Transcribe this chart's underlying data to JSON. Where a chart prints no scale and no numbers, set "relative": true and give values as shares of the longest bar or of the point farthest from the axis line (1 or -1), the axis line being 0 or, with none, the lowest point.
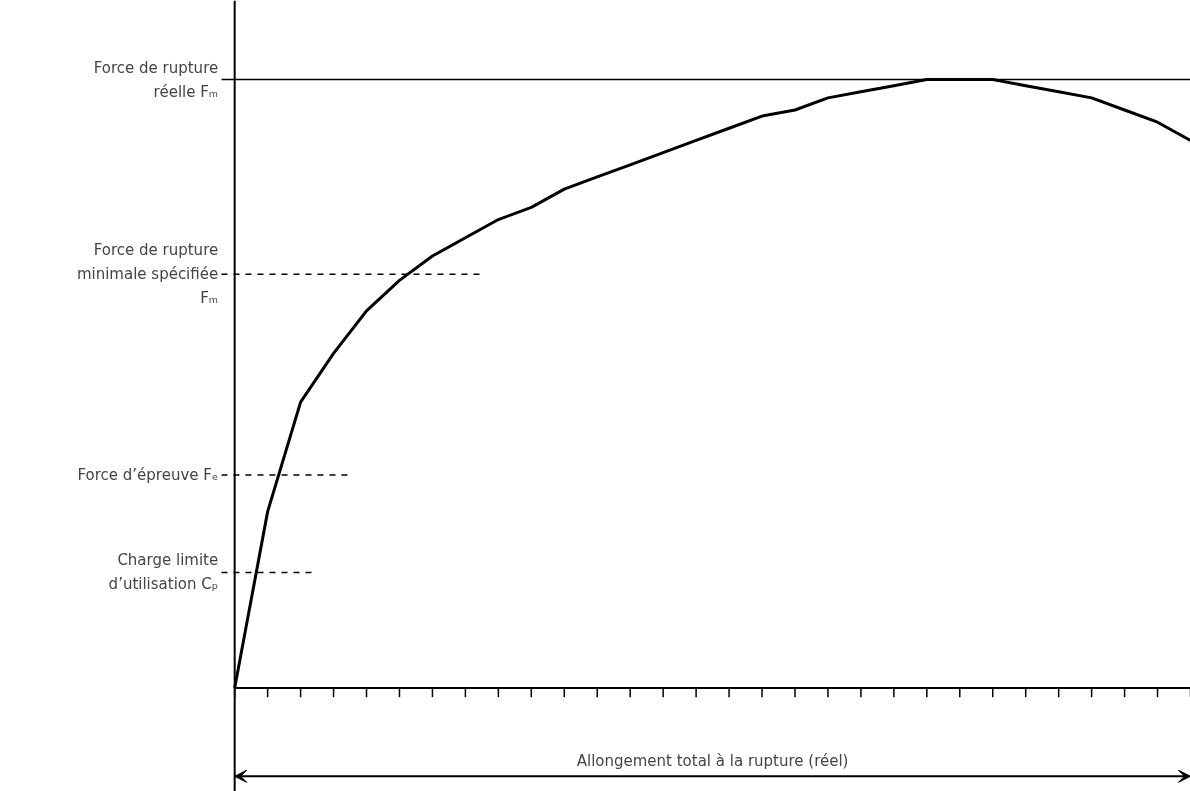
{
  "chart_data": {
    "type": "line",
    "relative": true,
    "color": "#000000",
    "line_style": "solid",
    "categories": [
      null,
      null,
      null,
      null,
      null,
      null,
      null,
      null,
      null,
      null,
      null,
      null,
      null,
      null,
      null,
      null,
      null,
      null,
      null,
      null,
      null,
      null,
      null,
      null,
      null,
      null,
      null,
      null,
      null,
      null
    ],
    "values": [
      0,
      0.29,
      0.47,
      0.55,
      0.62,
      0.67,
      0.71,
      0.74,
      0.77,
      0.79,
      0.82,
      0.84,
      0.86,
      0.88,
      0.9,
      0.92,
      0.94,
      0.95,
      0.97,
      0.98,
      0.99,
      1.0,
      1.0,
      1.0,
      0.99,
      0.98,
      0.97,
      0.95,
      0.93,
      0.9
    ],
    "xlabel": "Allongement total à la rupture (réel)",
    "ref_lines": [
      {
        "axis": "y",
        "value": 1.0,
        "label": "Force de rupture\nréelle Fₘ",
        "line_style": "solid"
      },
      {
        "axis": "y",
        "value": 0.68,
        "label": "Force de rupture\nminimale spécifiée\nFₘ",
        "line_style": "dashed"
      },
      {
        "axis": "y",
        "value": 0.35,
        "label": "Force d’épreuve Fₑ",
        "line_style": "dashed"
      },
      {
        "axis": "y",
        "value": 0.19,
        "label": "Charge limite\nd’utilisation Cₚ",
        "line_style": "dashed"
      }
    ]
  }
}
